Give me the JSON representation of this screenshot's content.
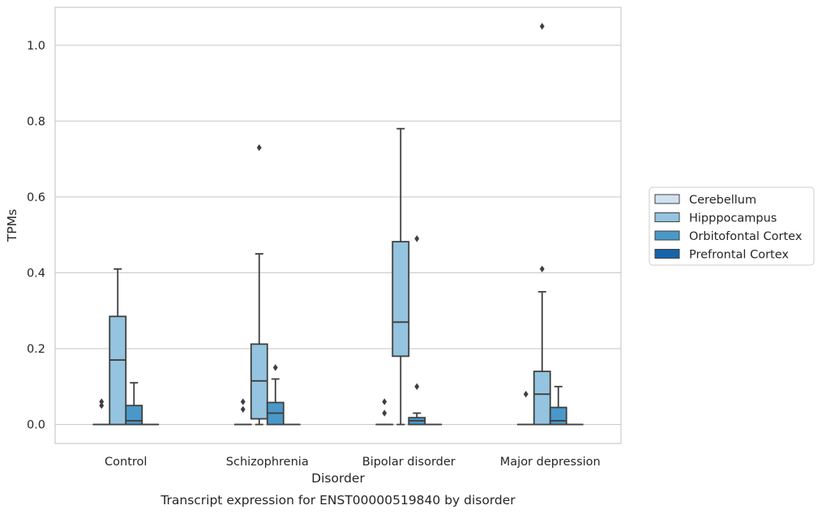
{
  "chart_data": {
    "type": "box",
    "title": "Transcript expression for ENST00000519840 by disorder",
    "xlabel": "Disorder",
    "ylabel": "TPMs",
    "ylim": [
      -0.05,
      1.1
    ],
    "yticks": [
      0.0,
      0.2,
      0.4,
      0.6,
      0.8,
      1.0
    ],
    "ytick_labels": [
      "0.0",
      "0.2",
      "0.4",
      "0.6",
      "0.8",
      "1.0"
    ],
    "grid": "horizontal",
    "legend_position": "right",
    "categories": [
      "Control",
      "Schizophrenia",
      "Bipolar disorder",
      "Major depression"
    ],
    "series": [
      {
        "name": "Cerebellum",
        "color": "#d0e1f2",
        "boxes": [
          {
            "q1": 0,
            "median": 0,
            "q3": 0,
            "whislo": 0,
            "whishi": 0,
            "fliers": [
              0.05,
              0.06
            ]
          },
          {
            "q1": 0,
            "median": 0,
            "q3": 0,
            "whislo": 0,
            "whishi": 0,
            "fliers": [
              0.04,
              0.06
            ]
          },
          {
            "q1": 0,
            "median": 0,
            "q3": 0,
            "whislo": 0,
            "whishi": 0,
            "fliers": [
              0.03,
              0.06
            ]
          },
          {
            "q1": 0,
            "median": 0,
            "q3": 0,
            "whislo": 0,
            "whishi": 0,
            "fliers": [
              0.08
            ]
          }
        ]
      },
      {
        "name": "Hipppocampus",
        "color": "#94c4df",
        "boxes": [
          {
            "q1": 0,
            "median": 0.17,
            "q3": 0.285,
            "whislo": 0,
            "whishi": 0.41,
            "fliers": []
          },
          {
            "q1": 0.015,
            "median": 0.115,
            "q3": 0.212,
            "whislo": 0,
            "whishi": 0.45,
            "fliers": [
              0.73
            ]
          },
          {
            "q1": 0.18,
            "median": 0.27,
            "q3": 0.482,
            "whislo": 0,
            "whishi": 0.78,
            "fliers": []
          },
          {
            "q1": 0,
            "median": 0.08,
            "q3": 0.14,
            "whislo": 0,
            "whishi": 0.35,
            "fliers": [
              0.41,
              1.05
            ]
          }
        ]
      },
      {
        "name": "Orbitofontal Cortex",
        "color": "#4a98c9",
        "boxes": [
          {
            "q1": 0,
            "median": 0.01,
            "q3": 0.05,
            "whislo": 0,
            "whishi": 0.11,
            "fliers": []
          },
          {
            "q1": 0,
            "median": 0.03,
            "q3": 0.058,
            "whislo": 0,
            "whishi": 0.12,
            "fliers": [
              0.15
            ]
          },
          {
            "q1": 0,
            "median": 0.01,
            "q3": 0.018,
            "whislo": 0,
            "whishi": 0.03,
            "fliers": [
              0.1,
              0.49
            ]
          },
          {
            "q1": 0,
            "median": 0.01,
            "q3": 0.045,
            "whislo": 0,
            "whishi": 0.1,
            "fliers": []
          }
        ]
      },
      {
        "name": "Prefrontal Cortex",
        "color": "#1764ab",
        "boxes": [
          {
            "q1": 0,
            "median": 0,
            "q3": 0,
            "whislo": 0,
            "whishi": 0,
            "fliers": []
          },
          {
            "q1": 0,
            "median": 0,
            "q3": 0,
            "whislo": 0,
            "whishi": 0,
            "fliers": []
          },
          {
            "q1": 0,
            "median": 0,
            "q3": 0,
            "whislo": 0,
            "whishi": 0,
            "fliers": []
          },
          {
            "q1": 0,
            "median": 0,
            "q3": 0,
            "whislo": 0,
            "whishi": 0,
            "fliers": []
          }
        ]
      }
    ]
  }
}
